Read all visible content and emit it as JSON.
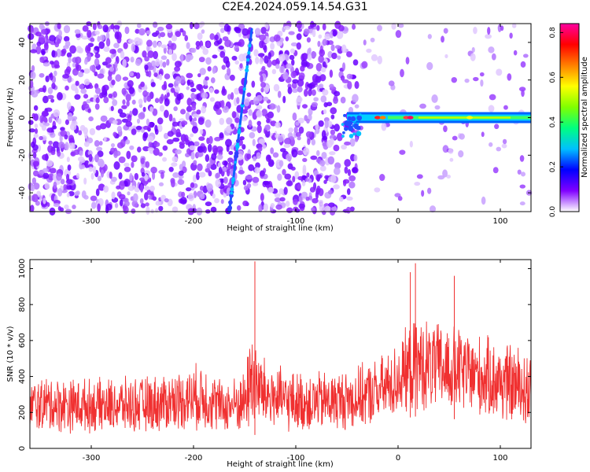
{
  "title": "C2E4.2024.059.14.54.G31",
  "chart_data": [
    {
      "type": "heatmap",
      "xlabel": "Height of straight line (km)",
      "ylabel": "Frequency (Hz)",
      "xlim": [
        -360,
        130
      ],
      "ylim": [
        -50,
        50
      ],
      "xticks": [
        -300,
        -200,
        -100,
        0,
        100
      ],
      "yticks": [
        -40,
        -20,
        0,
        20,
        40
      ],
      "colorbar": {
        "label": "Normalized spectral amplitude",
        "range": [
          0.0,
          0.84
        ],
        "ticks": [
          0.0,
          0.2,
          0.4,
          0.6,
          0.8
        ],
        "colormap": [
          "#ffffff",
          "#8000ff",
          "#0000ff",
          "#00c0ff",
          "#00ff80",
          "#80ff00",
          "#ffff00",
          "#ff8000",
          "#ff0000",
          "#ff00a0"
        ]
      },
      "features": [
        {
          "name": "diagonal streak",
          "x_range": [
            -165,
            -143
          ],
          "y_range": [
            -50,
            47
          ]
        },
        {
          "name": "carrier line",
          "x_range": [
            -50,
            130
          ],
          "frequency": 0,
          "peak_amplitude": 0.8
        }
      ]
    },
    {
      "type": "line",
      "xlabel": "Height of straight line (km)",
      "ylabel": "SNR (10 * v/v)",
      "xlim": [
        -360,
        130
      ],
      "ylim": [
        0,
        1050
      ],
      "xticks": [
        -300,
        -200,
        -100,
        0,
        100
      ],
      "yticks": [
        0,
        200,
        400,
        600,
        800,
        1000
      ],
      "color": "#f03030",
      "envelope": {
        "x": [
          -360,
          -340,
          -300,
          -260,
          -230,
          -210,
          -190,
          -170,
          -150,
          -142,
          -138,
          -130,
          -110,
          -90,
          -60,
          -40,
          -20,
          -5,
          10,
          20,
          40,
          60,
          80,
          100,
          115,
          130
        ],
        "upper": [
          400,
          420,
          400,
          410,
          430,
          460,
          500,
          380,
          450,
          800,
          600,
          520,
          450,
          440,
          450,
          470,
          520,
          580,
          700,
          760,
          720,
          700,
          650,
          620,
          600,
          580
        ],
        "lower": [
          80,
          70,
          75,
          70,
          75,
          90,
          80,
          75,
          70,
          60,
          90,
          80,
          75,
          70,
          80,
          90,
          110,
          140,
          170,
          180,
          170,
          160,
          150,
          120,
          90,
          70
        ]
      },
      "peaks": [
        {
          "x": -140,
          "y": 1040
        },
        {
          "x": 17,
          "y": 1030
        },
        {
          "x": 12,
          "y": 980
        },
        {
          "x": 55,
          "y": 960
        }
      ]
    }
  ]
}
